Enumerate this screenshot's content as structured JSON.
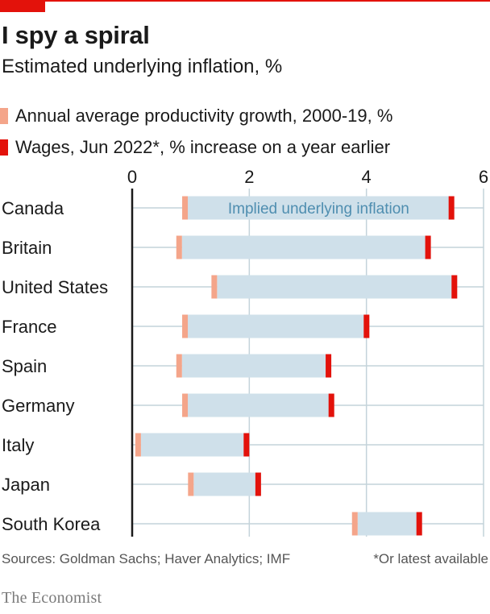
{
  "header": {
    "title": "I spy a spiral",
    "subtitle": "Estimated underlying inflation, %"
  },
  "legend": [
    {
      "label_bold": "Annual average productivity growth",
      "label_rest": ", 2000-19, %",
      "color": "#f4a58a"
    },
    {
      "label_bold": "Wages",
      "label_rest": ", Jun 2022*, % increase on a year earlier",
      "color": "#e3120b"
    }
  ],
  "colors": {
    "productivity": "#f4a58a",
    "wages": "#e3120b",
    "implied": "#cfe0ea",
    "annotation": "#4f8eb0",
    "gridline": "#c4d3da",
    "axis": "#1a1a1a"
  },
  "chart_data": {
    "type": "bar",
    "orientation": "horizontal",
    "title": "I spy a spiral",
    "subtitle": "Estimated underlying inflation, %",
    "xlim": [
      0,
      6
    ],
    "x_ticks": [
      "0",
      "2",
      "4",
      "6"
    ],
    "grid": true,
    "legend_position": "top",
    "annotation": "Implied underlying inflation",
    "categories": [
      "Canada",
      "Britain",
      "United States",
      "France",
      "Spain",
      "Germany",
      "Italy",
      "Japan",
      "South Korea"
    ],
    "series": [
      {
        "name": "Annual average productivity growth, 2000-19, %",
        "values": [
          0.95,
          0.85,
          1.45,
          0.95,
          0.85,
          0.95,
          0.15,
          1.05,
          3.85
        ]
      },
      {
        "name": "Wages, Jun 2022*, % increase on a year earlier",
        "values": [
          5.5,
          5.1,
          5.55,
          4.05,
          3.4,
          3.45,
          2.0,
          2.2,
          4.95
        ]
      }
    ]
  },
  "footer": {
    "sources": "Sources: Goldman Sachs; Haver Analytics; IMF",
    "note": "*Or latest available",
    "brand": "The Economist"
  }
}
